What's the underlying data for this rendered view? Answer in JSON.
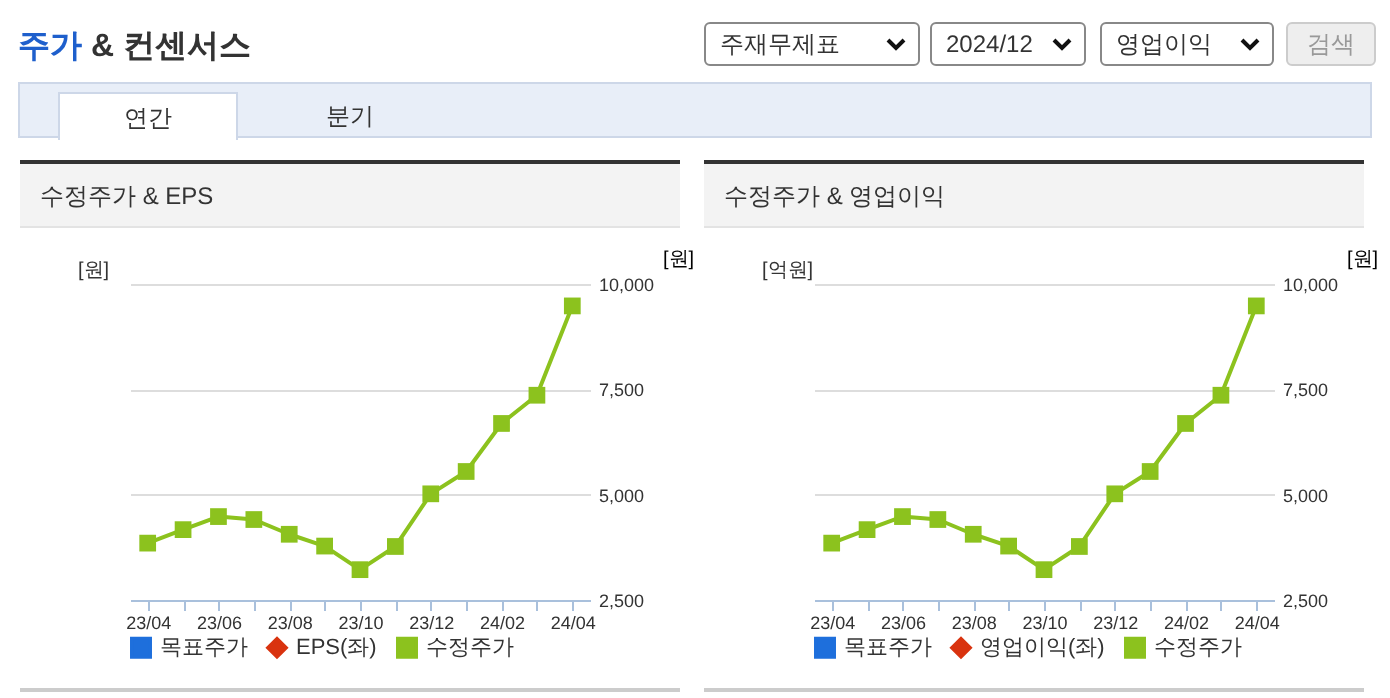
{
  "chart_data": [
    {
      "type": "other",
      "title": "주가 & 컨센서스",
      "annotations": [
        "주재무제표",
        "2024/12",
        "영업이익",
        "검색",
        "연간",
        "분기"
      ]
    },
    {
      "type": "line",
      "title": "수정주가 & EPS",
      "ylabel": "[원]",
      "y2label": "[원]",
      "categories": [
        "23/04",
        null,
        "23/06",
        null,
        "23/08",
        null,
        "23/10",
        null,
        "23/12",
        null,
        "24/02",
        null,
        "24/04"
      ],
      "series": [
        {
          "name": "목표주가",
          "color": "#1e6fdc",
          "values": [
            null,
            null,
            null,
            null,
            null,
            null,
            null,
            null,
            null,
            null,
            null,
            null,
            null
          ]
        },
        {
          "name": "EPS(좌)",
          "color": "#d9330f",
          "values": [
            null,
            null,
            null,
            null,
            null,
            null,
            null,
            null,
            null,
            null,
            null,
            null,
            null
          ]
        },
        {
          "name": "수정주가",
          "color": "#8cc21e",
          "axis": "y2",
          "values": [
            3850,
            4170,
            4480,
            4410,
            4060,
            3780,
            3220,
            3770,
            5020,
            5550,
            6690,
            7360,
            9480
          ]
        }
      ],
      "y2lim": [
        2500,
        10000
      ],
      "y2ticks": [
        {
          "value": 2500,
          "label": "2,500"
        },
        {
          "value": 5000,
          "label": "5,000"
        },
        {
          "value": 7500,
          "label": "7,500"
        },
        {
          "value": 10000,
          "label": "10,000"
        }
      ],
      "grid": "y",
      "legend": "bottom",
      "marker": "square"
    },
    {
      "type": "line",
      "title": "수정주가 & 영업이익",
      "ylabel": "[억원]",
      "y2label": "[원]",
      "categories": [
        "23/04",
        null,
        "23/06",
        null,
        "23/08",
        null,
        "23/10",
        null,
        "23/12",
        null,
        "24/02",
        null,
        "24/04"
      ],
      "series": [
        {
          "name": "목표주가",
          "color": "#1e6fdc",
          "values": [
            null,
            null,
            null,
            null,
            null,
            null,
            null,
            null,
            null,
            null,
            null,
            null,
            null
          ]
        },
        {
          "name": "영업이익(좌)",
          "color": "#d9330f",
          "values": [
            null,
            null,
            null,
            null,
            null,
            null,
            null,
            null,
            null,
            null,
            null,
            null,
            null
          ]
        },
        {
          "name": "수정주가",
          "color": "#8cc21e",
          "axis": "y2",
          "values": [
            3850,
            4170,
            4480,
            4410,
            4060,
            3780,
            3220,
            3770,
            5020,
            5550,
            6690,
            7360,
            9480
          ]
        }
      ],
      "y2lim": [
        2500,
        10000
      ],
      "y2ticks": [
        {
          "value": 2500,
          "label": "2,500"
        },
        {
          "value": 5000,
          "label": "5,000"
        },
        {
          "value": 7500,
          "label": "7,500"
        },
        {
          "value": 10000,
          "label": "10,000"
        }
      ],
      "grid": "y",
      "legend": "bottom",
      "marker": "square"
    }
  ]
}
